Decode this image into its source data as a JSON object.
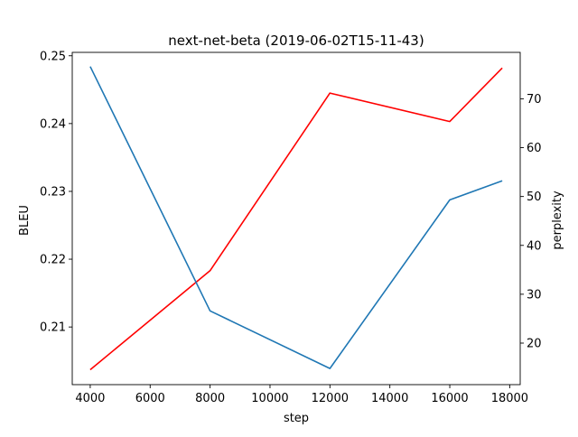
{
  "chart_data": {
    "type": "line",
    "title": "next-net-beta (2019-06-02T15-11-43)",
    "xlabel": "step",
    "ylabel_left": "BLEU",
    "ylabel_right": "perplexity",
    "xlim": [
      3400,
      18350
    ],
    "ylim_left": [
      0.2015,
      0.2505
    ],
    "ylim_right": [
      11.5,
      79.5
    ],
    "x_ticks": [
      4000,
      6000,
      8000,
      10000,
      12000,
      14000,
      16000,
      18000
    ],
    "y_ticks_left": [
      0.21,
      0.22,
      0.23,
      0.24,
      0.25
    ],
    "y_ticks_right": [
      20,
      30,
      40,
      50,
      60,
      70
    ],
    "grid": false,
    "series": [
      {
        "axis": "left",
        "color": "#ff0000",
        "x": [
          4000,
          8000,
          12000,
          16000,
          17750
        ],
        "values": [
          0.2037,
          0.2183,
          0.2445,
          0.2403,
          0.2482
        ]
      },
      {
        "axis": "right",
        "color": "#1f77b4",
        "x": [
          4000,
          8000,
          12000,
          16000,
          17750
        ],
        "values": [
          76.6,
          26.6,
          14.8,
          49.3,
          53.2
        ]
      }
    ]
  }
}
